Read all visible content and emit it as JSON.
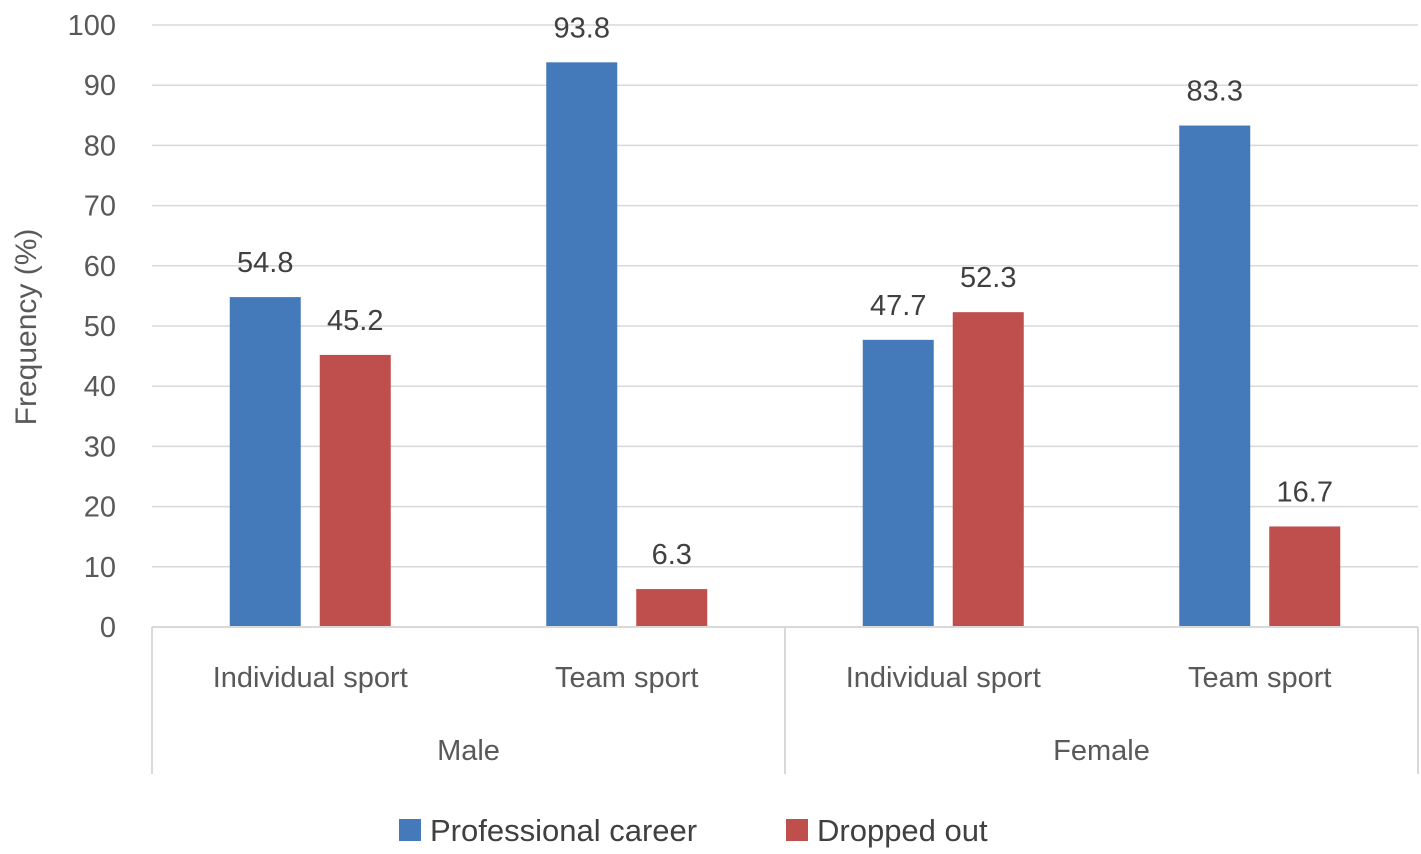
{
  "chart_data": {
    "type": "bar",
    "title": "",
    "ylabel": "Frequency (%)",
    "xlabel": "",
    "ylim": [
      0,
      100
    ],
    "yticks": [
      0,
      10,
      20,
      30,
      40,
      50,
      60,
      70,
      80,
      90,
      100
    ],
    "grid": true,
    "legend_position": "bottom",
    "groups": [
      {
        "name": "Male",
        "categories": [
          "Individual sport",
          "Team sport"
        ]
      },
      {
        "name": "Female",
        "categories": [
          "Individual sport",
          "Team sport"
        ]
      }
    ],
    "categories": [
      "Individual sport",
      "Team sport",
      "Individual sport",
      "Team sport"
    ],
    "series": [
      {
        "name": "Professional career",
        "color": "#4479BA",
        "values": [
          54.8,
          93.8,
          47.7,
          83.3
        ]
      },
      {
        "name": "Dropped out",
        "color": "#BE4F4C",
        "values": [
          45.2,
          6.3,
          52.3,
          16.7
        ]
      }
    ],
    "colors": {
      "grid": "#D9D9D9",
      "axis": "#D9D9D9",
      "text": "#595959"
    }
  }
}
